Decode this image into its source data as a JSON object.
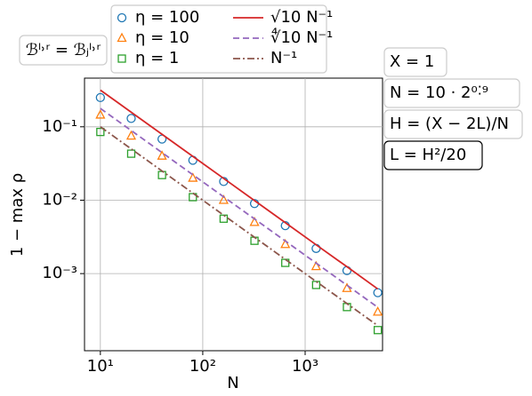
{
  "chart_data": {
    "type": "scatter",
    "xscale": "log",
    "yscale": "log",
    "grid": true,
    "xlabel": "N",
    "ylabel": "1 − max ρ",
    "x": [
      10,
      20,
      40,
      80,
      160,
      320,
      640,
      1280,
      2560,
      5120
    ],
    "xlim": [
      7,
      5700
    ],
    "ylim": [
      8.9e-05,
      0.46
    ],
    "xticks": [
      {
        "value": 10,
        "label": "10¹"
      },
      {
        "value": 100,
        "label": "10²"
      },
      {
        "value": 1000,
        "label": "10³"
      }
    ],
    "yticks": [
      {
        "value": 0.1,
        "label": "10⁻¹"
      },
      {
        "value": 0.01,
        "label": "10⁻²"
      },
      {
        "value": 0.001,
        "label": "10⁻³"
      }
    ],
    "series": [
      {
        "name": "η = 100",
        "color": "#1f77b4",
        "marker": "circle",
        "linestyle": "none",
        "values": [
          0.25,
          0.13,
          0.068,
          0.035,
          0.018,
          0.009,
          0.0045,
          0.0022,
          0.0011,
          0.00055
        ]
      },
      {
        "name": "η = 10",
        "color": "#ff7f0e",
        "marker": "triangle",
        "linestyle": "none",
        "values": [
          0.145,
          0.075,
          0.04,
          0.02,
          0.01,
          0.005,
          0.0025,
          0.00125,
          0.00063,
          0.0003
        ]
      },
      {
        "name": "η = 1",
        "color": "#2ca02c",
        "marker": "square",
        "linestyle": "none",
        "values": [
          0.085,
          0.043,
          0.022,
          0.011,
          0.0056,
          0.0028,
          0.0014,
          0.0007,
          0.00035,
          0.00017
        ]
      },
      {
        "name": "√10 N⁻¹",
        "color": "#d62728",
        "marker": "none",
        "linestyle": "solid",
        "values": [
          0.316,
          0.158,
          0.079,
          0.0395,
          0.0198,
          0.00988,
          0.00494,
          0.00247,
          0.00124,
          0.000618
        ]
      },
      {
        "name": "∜10 N⁻¹",
        "color": "#9467bd",
        "marker": "none",
        "linestyle": "dashed",
        "values": [
          0.178,
          0.0889,
          0.0445,
          0.0222,
          0.0111,
          0.00556,
          0.00278,
          0.00139,
          0.000695,
          0.000347
        ]
      },
      {
        "name": "N⁻¹",
        "color": "#8c564b",
        "marker": "none",
        "linestyle": "dashdot",
        "values": [
          0.1,
          0.05,
          0.025,
          0.0125,
          0.00625,
          0.003125,
          0.0015625,
          0.00078125,
          0.000390625,
          0.0001953
        ]
      }
    ],
    "annotations": [
      "ℬˡ˒ʳ = ℬⱼˡ˒ʳ",
      "X = 1",
      "N = 10 · 2⁰˸⁹",
      "H = (X − 2L)/N",
      "L = H²/20"
    ]
  }
}
